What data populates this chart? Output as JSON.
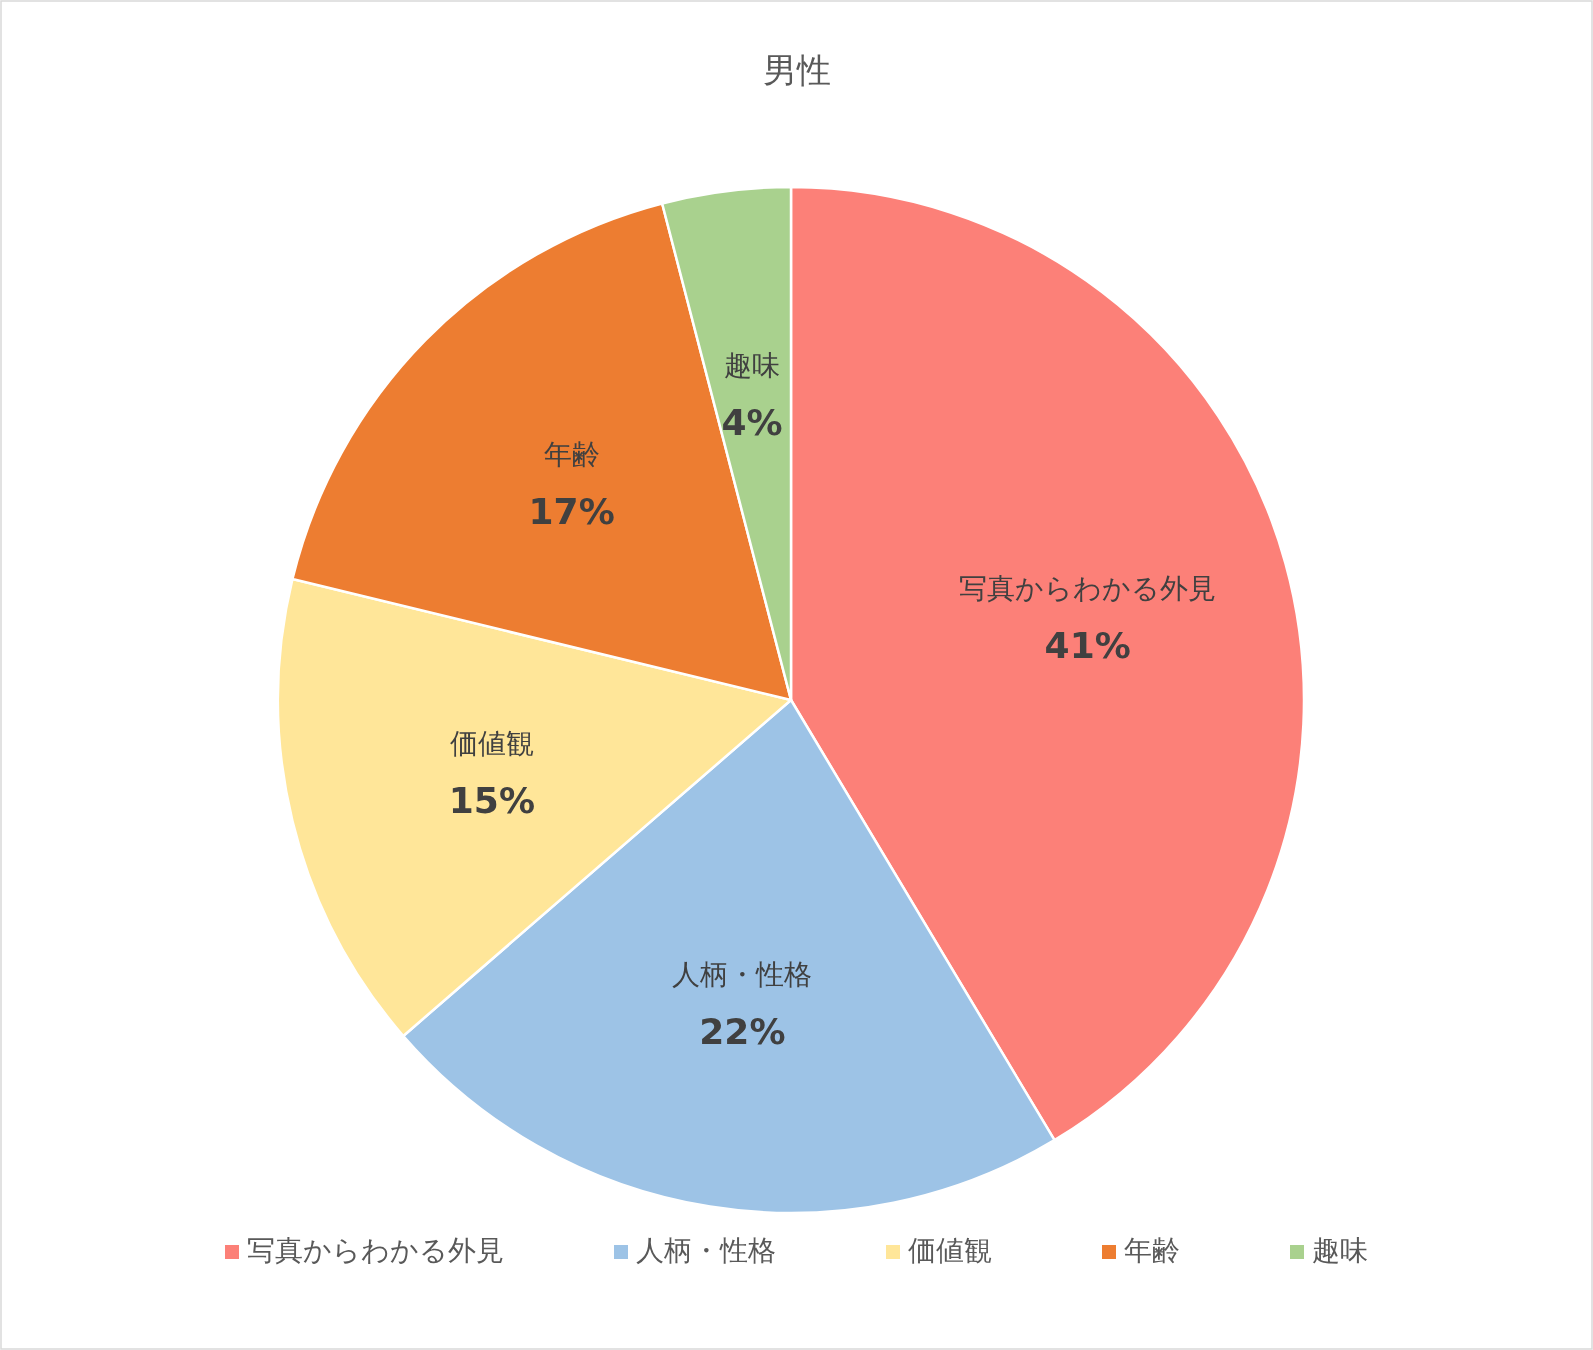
{
  "chart_data": {
    "type": "pie",
    "title": "男性",
    "categories": [
      "写真からわかる外見",
      "人柄・性格",
      "価値観",
      "年齢",
      "趣味"
    ],
    "values": [
      41,
      22,
      15,
      17,
      4
    ],
    "value_labels": [
      "41%",
      "22%",
      "15%",
      "17%",
      "4%"
    ],
    "colors": [
      "#fc8078",
      "#9dc3e6",
      "#ffe699",
      "#ed7d31",
      "#a9d18e"
    ],
    "legend": "bottom"
  }
}
